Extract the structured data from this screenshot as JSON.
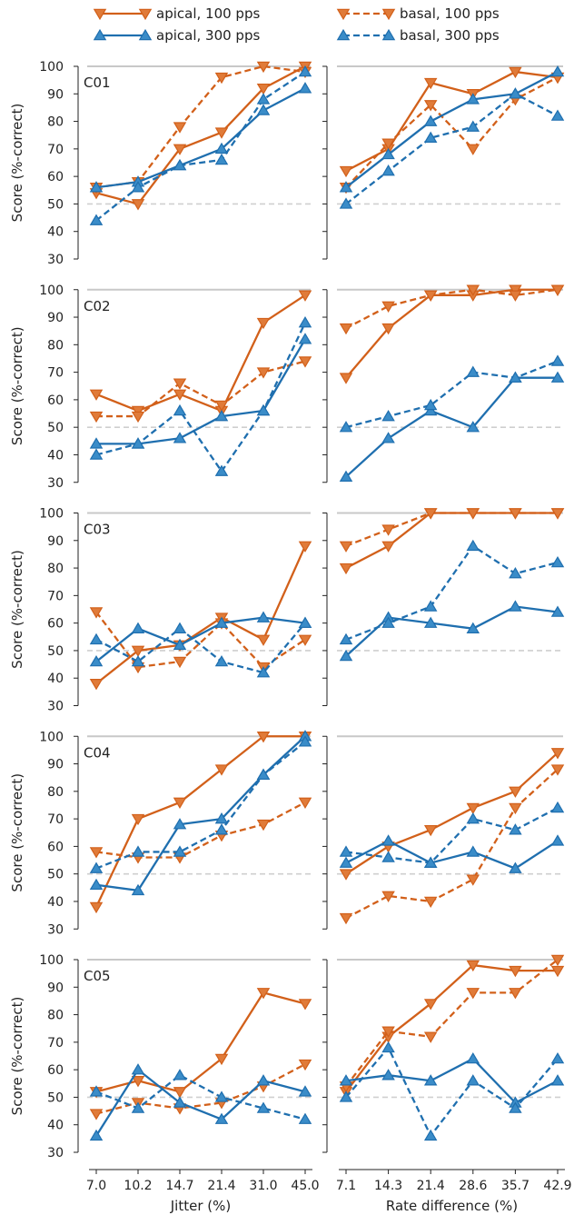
{
  "colors": {
    "orange": "#D2601A",
    "orange_fill": "#E07B39",
    "blue": "#1F6FAF",
    "blue_fill": "#3A8CC8",
    "chance": "#cfcfcf",
    "ceiling": "#c8c8c8"
  },
  "legend": [
    {
      "label": "apical, 100 pps",
      "color": "orange",
      "dash": false,
      "marker": "down"
    },
    {
      "label": "basal, 100 pps",
      "color": "orange",
      "dash": true,
      "marker": "down"
    },
    {
      "label": "apical, 300 pps",
      "color": "blue",
      "dash": false,
      "marker": "up"
    },
    {
      "label": "basal, 300 pps",
      "color": "blue",
      "dash": true,
      "marker": "up"
    }
  ],
  "chart_data": {
    "type": "line",
    "ylabel": "Score (%-correct)",
    "ylim": [
      30,
      100
    ],
    "yticks": [
      "30",
      "40",
      "50",
      "60",
      "70",
      "80",
      "90",
      "100"
    ],
    "chance_level": 50,
    "columns": [
      {
        "xlabel": "Jitter (%)",
        "categories": [
          "7.0",
          "10.2",
          "14.7",
          "21.4",
          "31.0",
          "45.0"
        ]
      },
      {
        "xlabel": "Rate difference (%)",
        "categories": [
          "7.1",
          "14.3",
          "21.4",
          "28.6",
          "35.7",
          "42.9"
        ]
      }
    ],
    "panels": [
      {
        "label": "C01",
        "left": {
          "apical_100": [
            54,
            50,
            70,
            76,
            92,
            100
          ],
          "basal_100": [
            56,
            58,
            78,
            96,
            100,
            98
          ],
          "apical_300": [
            56,
            58,
            64,
            70,
            84,
            92
          ],
          "basal_300": [
            44,
            56,
            64,
            66,
            88,
            98
          ]
        },
        "right": {
          "apical_100": [
            62,
            70,
            94,
            90,
            98,
            96
          ],
          "basal_100": [
            56,
            72,
            86,
            70,
            88,
            96
          ],
          "apical_300": [
            56,
            68,
            80,
            88,
            90,
            98
          ],
          "basal_300": [
            50,
            62,
            74,
            78,
            90,
            82
          ]
        }
      },
      {
        "label": "C02",
        "left": {
          "apical_100": [
            62,
            56,
            62,
            56,
            88,
            98
          ],
          "basal_100": [
            54,
            54,
            66,
            58,
            70,
            74
          ],
          "apical_300": [
            44,
            44,
            46,
            54,
            56,
            82
          ],
          "basal_300": [
            40,
            44,
            56,
            34,
            56,
            88
          ]
        },
        "right": {
          "apical_100": [
            68,
            86,
            98,
            98,
            100,
            100
          ],
          "basal_100": [
            86,
            94,
            98,
            100,
            98,
            100
          ],
          "apical_300": [
            32,
            46,
            56,
            50,
            68,
            68
          ],
          "basal_300": [
            50,
            54,
            58,
            70,
            68,
            74
          ]
        }
      },
      {
        "label": "C03",
        "left": {
          "apical_100": [
            38,
            50,
            52,
            62,
            54,
            88
          ],
          "basal_100": [
            64,
            44,
            46,
            60,
            44,
            54
          ],
          "apical_300": [
            46,
            58,
            52,
            60,
            62,
            60
          ],
          "basal_300": [
            54,
            46,
            58,
            46,
            42,
            60
          ]
        },
        "right": {
          "apical_100": [
            80,
            88,
            100,
            100,
            100,
            100
          ],
          "basal_100": [
            88,
            94,
            100,
            100,
            100,
            100
          ],
          "apical_300": [
            48,
            62,
            60,
            58,
            66,
            64
          ],
          "basal_300": [
            54,
            60,
            66,
            88,
            78,
            82
          ]
        }
      },
      {
        "label": "C04",
        "left": {
          "apical_100": [
            38,
            70,
            76,
            88,
            100,
            100
          ],
          "basal_100": [
            58,
            56,
            56,
            64,
            68,
            76
          ],
          "apical_300": [
            46,
            44,
            68,
            70,
            86,
            100
          ],
          "basal_300": [
            52,
            58,
            58,
            66,
            86,
            98
          ]
        },
        "right": {
          "apical_100": [
            50,
            60,
            66,
            74,
            80,
            94
          ],
          "basal_100": [
            34,
            42,
            40,
            48,
            74,
            88
          ],
          "apical_300": [
            54,
            62,
            54,
            58,
            52,
            62
          ],
          "basal_300": [
            58,
            56,
            54,
            70,
            66,
            74
          ]
        }
      },
      {
        "label": "C05",
        "left": {
          "apical_100": [
            52,
            56,
            52,
            64,
            88,
            84
          ],
          "basal_100": [
            44,
            48,
            46,
            48,
            54,
            62
          ],
          "apical_300": [
            36,
            60,
            48,
            42,
            56,
            52
          ],
          "basal_300": [
            52,
            46,
            58,
            50,
            46,
            42
          ]
        },
        "right": {
          "apical_100": [
            52,
            72,
            84,
            98,
            96,
            96
          ],
          "basal_100": [
            54,
            74,
            72,
            88,
            88,
            100
          ],
          "apical_300": [
            56,
            58,
            56,
            64,
            48,
            56
          ],
          "basal_300": [
            50,
            68,
            36,
            56,
            46,
            64
          ]
        }
      }
    ]
  }
}
